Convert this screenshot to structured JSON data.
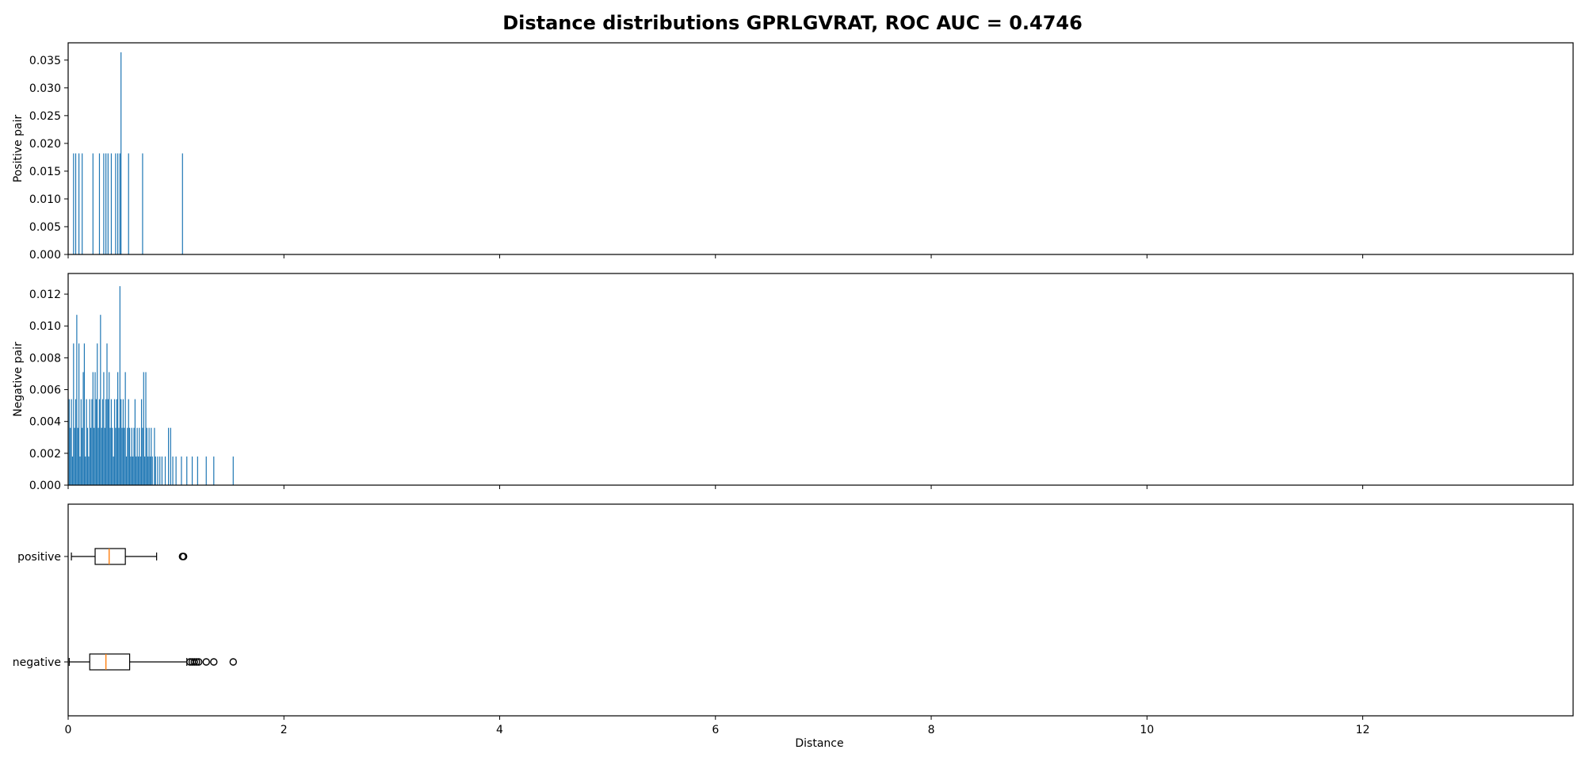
{
  "chart_data": {
    "title": "Distance distributions GPRLGVRAT, ROC AUC = 0.4746",
    "xlabel": "Distance",
    "xlim": [
      0,
      13.95
    ],
    "xticks": [
      0,
      2,
      4,
      6,
      8,
      10,
      12
    ],
    "series_color": "#1f77b4",
    "median_color": "#ff7f0e",
    "panels": [
      {
        "type": "bar",
        "ylabel": "Positive pair",
        "ylim": [
          0,
          0.0364
        ],
        "yticks": [
          "0.000",
          "0.005",
          "0.010",
          "0.015",
          "0.020",
          "0.025",
          "0.030",
          "0.035"
        ],
        "bar_width": 0.008,
        "bars": [
          [
            0.05,
            0.0182
          ],
          [
            0.07,
            0.0182
          ],
          [
            0.1,
            0.0182
          ],
          [
            0.13,
            0.0182
          ],
          [
            0.23,
            0.0182
          ],
          [
            0.29,
            0.0182
          ],
          [
            0.33,
            0.0182
          ],
          [
            0.35,
            0.0182
          ],
          [
            0.37,
            0.0182
          ],
          [
            0.4,
            0.0182
          ],
          [
            0.44,
            0.0182
          ],
          [
            0.46,
            0.0182
          ],
          [
            0.48,
            0.0182
          ],
          [
            0.49,
            0.0364
          ],
          [
            0.56,
            0.0182
          ],
          [
            0.69,
            0.0182
          ],
          [
            1.06,
            0.0182
          ]
        ]
      },
      {
        "type": "bar",
        "ylabel": "Negative pair",
        "ylim": [
          0,
          0.0127
        ],
        "yticks": [
          "0.000",
          "0.002",
          "0.004",
          "0.006",
          "0.008",
          "0.010",
          "0.012"
        ],
        "bar_width": 0.008,
        "bars": [
          [
            0.01,
            0.0054
          ],
          [
            0.02,
            0.0036
          ],
          [
            0.03,
            0.0054
          ],
          [
            0.04,
            0.0018
          ],
          [
            0.05,
            0.0089
          ],
          [
            0.06,
            0.0036
          ],
          [
            0.07,
            0.0054
          ],
          [
            0.08,
            0.0107
          ],
          [
            0.09,
            0.0036
          ],
          [
            0.1,
            0.0089
          ],
          [
            0.11,
            0.0018
          ],
          [
            0.12,
            0.0054
          ],
          [
            0.13,
            0.0036
          ],
          [
            0.14,
            0.0071
          ],
          [
            0.15,
            0.0089
          ],
          [
            0.16,
            0.0018
          ],
          [
            0.17,
            0.0054
          ],
          [
            0.18,
            0.0036
          ],
          [
            0.19,
            0.0018
          ],
          [
            0.2,
            0.0054
          ],
          [
            0.21,
            0.0036
          ],
          [
            0.22,
            0.0054
          ],
          [
            0.23,
            0.0071
          ],
          [
            0.24,
            0.0036
          ],
          [
            0.25,
            0.0071
          ],
          [
            0.26,
            0.0054
          ],
          [
            0.27,
            0.0089
          ],
          [
            0.28,
            0.0036
          ],
          [
            0.29,
            0.0054
          ],
          [
            0.3,
            0.0107
          ],
          [
            0.31,
            0.0036
          ],
          [
            0.32,
            0.0054
          ],
          [
            0.33,
            0.0071
          ],
          [
            0.34,
            0.0036
          ],
          [
            0.35,
            0.0054
          ],
          [
            0.36,
            0.0089
          ],
          [
            0.37,
            0.0054
          ],
          [
            0.38,
            0.0071
          ],
          [
            0.39,
            0.0036
          ],
          [
            0.4,
            0.0054
          ],
          [
            0.41,
            0.0036
          ],
          [
            0.42,
            0.0018
          ],
          [
            0.43,
            0.0054
          ],
          [
            0.44,
            0.0036
          ],
          [
            0.45,
            0.0054
          ],
          [
            0.46,
            0.0071
          ],
          [
            0.47,
            0.0036
          ],
          [
            0.48,
            0.0125
          ],
          [
            0.49,
            0.0054
          ],
          [
            0.5,
            0.0036
          ],
          [
            0.51,
            0.0054
          ],
          [
            0.52,
            0.0036
          ],
          [
            0.53,
            0.0071
          ],
          [
            0.54,
            0.0018
          ],
          [
            0.55,
            0.0036
          ],
          [
            0.56,
            0.0054
          ],
          [
            0.57,
            0.0036
          ],
          [
            0.58,
            0.0018
          ],
          [
            0.59,
            0.0036
          ],
          [
            0.6,
            0.0018
          ],
          [
            0.61,
            0.0036
          ],
          [
            0.62,
            0.0054
          ],
          [
            0.63,
            0.0018
          ],
          [
            0.64,
            0.0036
          ],
          [
            0.65,
            0.0018
          ],
          [
            0.66,
            0.0036
          ],
          [
            0.67,
            0.0018
          ],
          [
            0.68,
            0.0054
          ],
          [
            0.69,
            0.0036
          ],
          [
            0.7,
            0.0071
          ],
          [
            0.71,
            0.0018
          ],
          [
            0.72,
            0.0071
          ],
          [
            0.73,
            0.0036
          ],
          [
            0.74,
            0.0018
          ],
          [
            0.75,
            0.0036
          ],
          [
            0.76,
            0.0018
          ],
          [
            0.77,
            0.0036
          ],
          [
            0.78,
            0.0018
          ],
          [
            0.8,
            0.0036
          ],
          [
            0.81,
            0.0018
          ],
          [
            0.83,
            0.0018
          ],
          [
            0.85,
            0.0018
          ],
          [
            0.87,
            0.0018
          ],
          [
            0.9,
            0.0018
          ],
          [
            0.93,
            0.0036
          ],
          [
            0.95,
            0.0036
          ],
          [
            0.97,
            0.0018
          ],
          [
            1.0,
            0.0018
          ],
          [
            1.05,
            0.0018
          ],
          [
            1.1,
            0.0018
          ],
          [
            1.15,
            0.0018
          ],
          [
            1.2,
            0.0018
          ],
          [
            1.28,
            0.0018
          ],
          [
            1.35,
            0.0018
          ],
          [
            1.53,
            0.0018
          ]
        ]
      },
      {
        "type": "box",
        "orientation": "horizontal",
        "boxes": [
          {
            "label": "positive",
            "whisker_low": 0.03,
            "q1": 0.25,
            "median": 0.38,
            "q3": 0.53,
            "whisker_high": 0.82,
            "outliers": [
              1.06,
              1.07
            ]
          },
          {
            "label": "negative",
            "whisker_low": 0.01,
            "q1": 0.2,
            "median": 0.35,
            "q3": 0.57,
            "whisker_high": 1.1,
            "outliers": [
              1.13,
              1.15,
              1.17,
              1.19,
              1.21,
              1.28,
              1.35,
              1.53
            ]
          }
        ]
      }
    ]
  }
}
